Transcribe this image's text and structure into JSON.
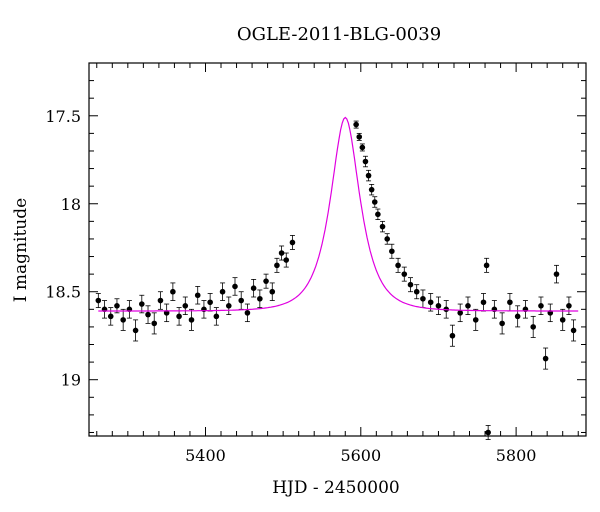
{
  "chart_data": {
    "type": "scatter",
    "title": "OGLE-2011-BLG-0039",
    "xlabel": "HJD - 2450000",
    "ylabel": "I magnitude",
    "xlim": [
      5250,
      5890
    ],
    "ylim": [
      19.32,
      17.2
    ],
    "y_inverted": true,
    "x_ticks": [
      5400,
      5600,
      5800
    ],
    "y_ticks": [
      17.5,
      18,
      18.5,
      19
    ],
    "y_tick_labels": [
      "17.5",
      "18",
      "18.5",
      "19"
    ],
    "grid": false,
    "series": [
      {
        "kind": "observations",
        "marker": "filled-circle-with-errorbars",
        "color": "#000000",
        "points": [
          {
            "x": 5262,
            "y": 18.55,
            "err": 0.04
          },
          {
            "x": 5270,
            "y": 18.6,
            "err": 0.05
          },
          {
            "x": 5278,
            "y": 18.64,
            "err": 0.05
          },
          {
            "x": 5286,
            "y": 18.58,
            "err": 0.04
          },
          {
            "x": 5294,
            "y": 18.66,
            "err": 0.06
          },
          {
            "x": 5302,
            "y": 18.6,
            "err": 0.05
          },
          {
            "x": 5310,
            "y": 18.72,
            "err": 0.06
          },
          {
            "x": 5318,
            "y": 18.57,
            "err": 0.05
          },
          {
            "x": 5326,
            "y": 18.63,
            "err": 0.05
          },
          {
            "x": 5334,
            "y": 18.68,
            "err": 0.06
          },
          {
            "x": 5342,
            "y": 18.55,
            "err": 0.05
          },
          {
            "x": 5350,
            "y": 18.62,
            "err": 0.05
          },
          {
            "x": 5358,
            "y": 18.5,
            "err": 0.05
          },
          {
            "x": 5366,
            "y": 18.64,
            "err": 0.05
          },
          {
            "x": 5374,
            "y": 18.58,
            "err": 0.05
          },
          {
            "x": 5382,
            "y": 18.66,
            "err": 0.06
          },
          {
            "x": 5390,
            "y": 18.52,
            "err": 0.05
          },
          {
            "x": 5398,
            "y": 18.6,
            "err": 0.05
          },
          {
            "x": 5406,
            "y": 18.56,
            "err": 0.05
          },
          {
            "x": 5414,
            "y": 18.64,
            "err": 0.05
          },
          {
            "x": 5422,
            "y": 18.5,
            "err": 0.05
          },
          {
            "x": 5430,
            "y": 18.58,
            "err": 0.05
          },
          {
            "x": 5438,
            "y": 18.47,
            "err": 0.05
          },
          {
            "x": 5446,
            "y": 18.55,
            "err": 0.05
          },
          {
            "x": 5454,
            "y": 18.62,
            "err": 0.05
          },
          {
            "x": 5462,
            "y": 18.48,
            "err": 0.05
          },
          {
            "x": 5470,
            "y": 18.54,
            "err": 0.05
          },
          {
            "x": 5478,
            "y": 18.44,
            "err": 0.04
          },
          {
            "x": 5486,
            "y": 18.5,
            "err": 0.05
          },
          {
            "x": 5492,
            "y": 18.35,
            "err": 0.04
          },
          {
            "x": 5498,
            "y": 18.28,
            "err": 0.04
          },
          {
            "x": 5504,
            "y": 18.32,
            "err": 0.04
          },
          {
            "x": 5512,
            "y": 18.22,
            "err": 0.04
          },
          {
            "x": 5594,
            "y": 17.55,
            "err": 0.02
          },
          {
            "x": 5598,
            "y": 17.62,
            "err": 0.02
          },
          {
            "x": 5602,
            "y": 17.68,
            "err": 0.02
          },
          {
            "x": 5606,
            "y": 17.76,
            "err": 0.03
          },
          {
            "x": 5610,
            "y": 17.84,
            "err": 0.03
          },
          {
            "x": 5614,
            "y": 17.92,
            "err": 0.03
          },
          {
            "x": 5618,
            "y": 17.99,
            "err": 0.03
          },
          {
            "x": 5622,
            "y": 18.06,
            "err": 0.03
          },
          {
            "x": 5628,
            "y": 18.13,
            "err": 0.03
          },
          {
            "x": 5634,
            "y": 18.2,
            "err": 0.03
          },
          {
            "x": 5640,
            "y": 18.27,
            "err": 0.04
          },
          {
            "x": 5648,
            "y": 18.35,
            "err": 0.04
          },
          {
            "x": 5656,
            "y": 18.4,
            "err": 0.04
          },
          {
            "x": 5664,
            "y": 18.46,
            "err": 0.04
          },
          {
            "x": 5672,
            "y": 18.5,
            "err": 0.04
          },
          {
            "x": 5680,
            "y": 18.54,
            "err": 0.05
          },
          {
            "x": 5690,
            "y": 18.56,
            "err": 0.05
          },
          {
            "x": 5700,
            "y": 18.58,
            "err": 0.05
          },
          {
            "x": 5710,
            "y": 18.6,
            "err": 0.05
          },
          {
            "x": 5718,
            "y": 18.75,
            "err": 0.06
          },
          {
            "x": 5728,
            "y": 18.62,
            "err": 0.05
          },
          {
            "x": 5738,
            "y": 18.58,
            "err": 0.05
          },
          {
            "x": 5748,
            "y": 18.66,
            "err": 0.06
          },
          {
            "x": 5758,
            "y": 18.56,
            "err": 0.05
          },
          {
            "x": 5762,
            "y": 18.35,
            "err": 0.04
          },
          {
            "x": 5764,
            "y": 19.3,
            "err": 0.04
          },
          {
            "x": 5772,
            "y": 18.6,
            "err": 0.05
          },
          {
            "x": 5782,
            "y": 18.68,
            "err": 0.06
          },
          {
            "x": 5792,
            "y": 18.56,
            "err": 0.05
          },
          {
            "x": 5802,
            "y": 18.64,
            "err": 0.06
          },
          {
            "x": 5812,
            "y": 18.6,
            "err": 0.05
          },
          {
            "x": 5822,
            "y": 18.7,
            "err": 0.06
          },
          {
            "x": 5832,
            "y": 18.58,
            "err": 0.05
          },
          {
            "x": 5838,
            "y": 18.88,
            "err": 0.06
          },
          {
            "x": 5844,
            "y": 18.62,
            "err": 0.05
          },
          {
            "x": 5852,
            "y": 18.4,
            "err": 0.05
          },
          {
            "x": 5860,
            "y": 18.66,
            "err": 0.06
          },
          {
            "x": 5868,
            "y": 18.58,
            "err": 0.05
          },
          {
            "x": 5874,
            "y": 18.72,
            "err": 0.06
          }
        ]
      },
      {
        "kind": "model",
        "marker": "line",
        "color": "#e000e0",
        "t0": 5580,
        "tE": 30,
        "u0": 0.6,
        "baseline": 18.61
      }
    ]
  }
}
